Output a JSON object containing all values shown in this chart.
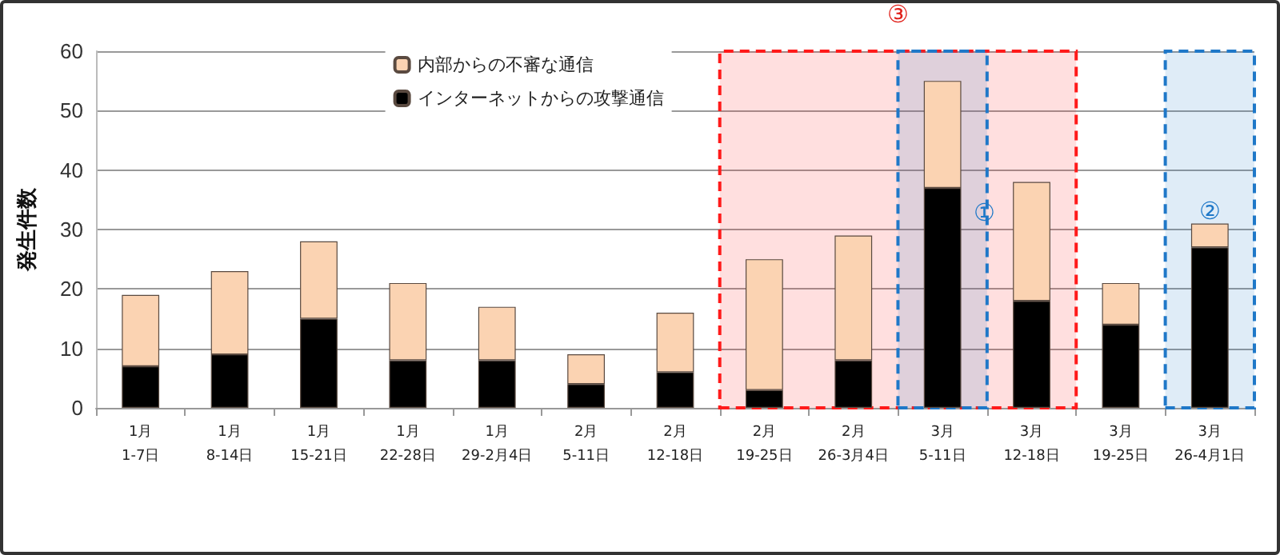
{
  "chart_data": {
    "type": "bar",
    "stacked": true,
    "ylabel": "発生件数",
    "categories": [
      "1月\n1-7日",
      "1月\n8-14日",
      "1月\n15-21日",
      "1月\n22-28日",
      "1月\n29-2月4日",
      "2月\n5-11日",
      "2月\n12-18日",
      "2月\n19-25日",
      "2月\n26-3月4日",
      "3月\n5-11日",
      "3月\n12-18日",
      "3月\n19-25日",
      "3月\n26-4月1日"
    ],
    "series": [
      {
        "name": "インターネットからの攻撃通信",
        "color": "#000000",
        "values": [
          7,
          9,
          15,
          8,
          8,
          4,
          6,
          3,
          8,
          37,
          18,
          14,
          27
        ]
      },
      {
        "name": "内部からの不審な通信",
        "color": "#fbd3b2",
        "values": [
          12,
          14,
          13,
          13,
          9,
          5,
          10,
          22,
          21,
          18,
          20,
          7,
          4
        ]
      }
    ],
    "ylim": [
      0,
      60
    ],
    "yticks": [
      0,
      10,
      20,
      30,
      40,
      50,
      60
    ],
    "grid": "y",
    "legend": "top",
    "bands": [
      {
        "axis": "x",
        "from": "2月\n19-25日",
        "to": "3月\n12-18日",
        "label": "③",
        "color": "#ff1a1a"
      },
      {
        "axis": "x",
        "from": "3月\n5-11日",
        "to": "3月\n5-11日",
        "color": "#1f78c8"
      },
      {
        "axis": "x",
        "from": "3月\n26-4月1日",
        "to": "3月\n26-4月1日",
        "color": "#1f78c8"
      }
    ],
    "annotations": [
      {
        "text": "①",
        "x": "3月\n5-11日",
        "y": 37
      },
      {
        "text": "②",
        "x": "3月\n26-4月1日",
        "y": 27
      }
    ]
  }
}
